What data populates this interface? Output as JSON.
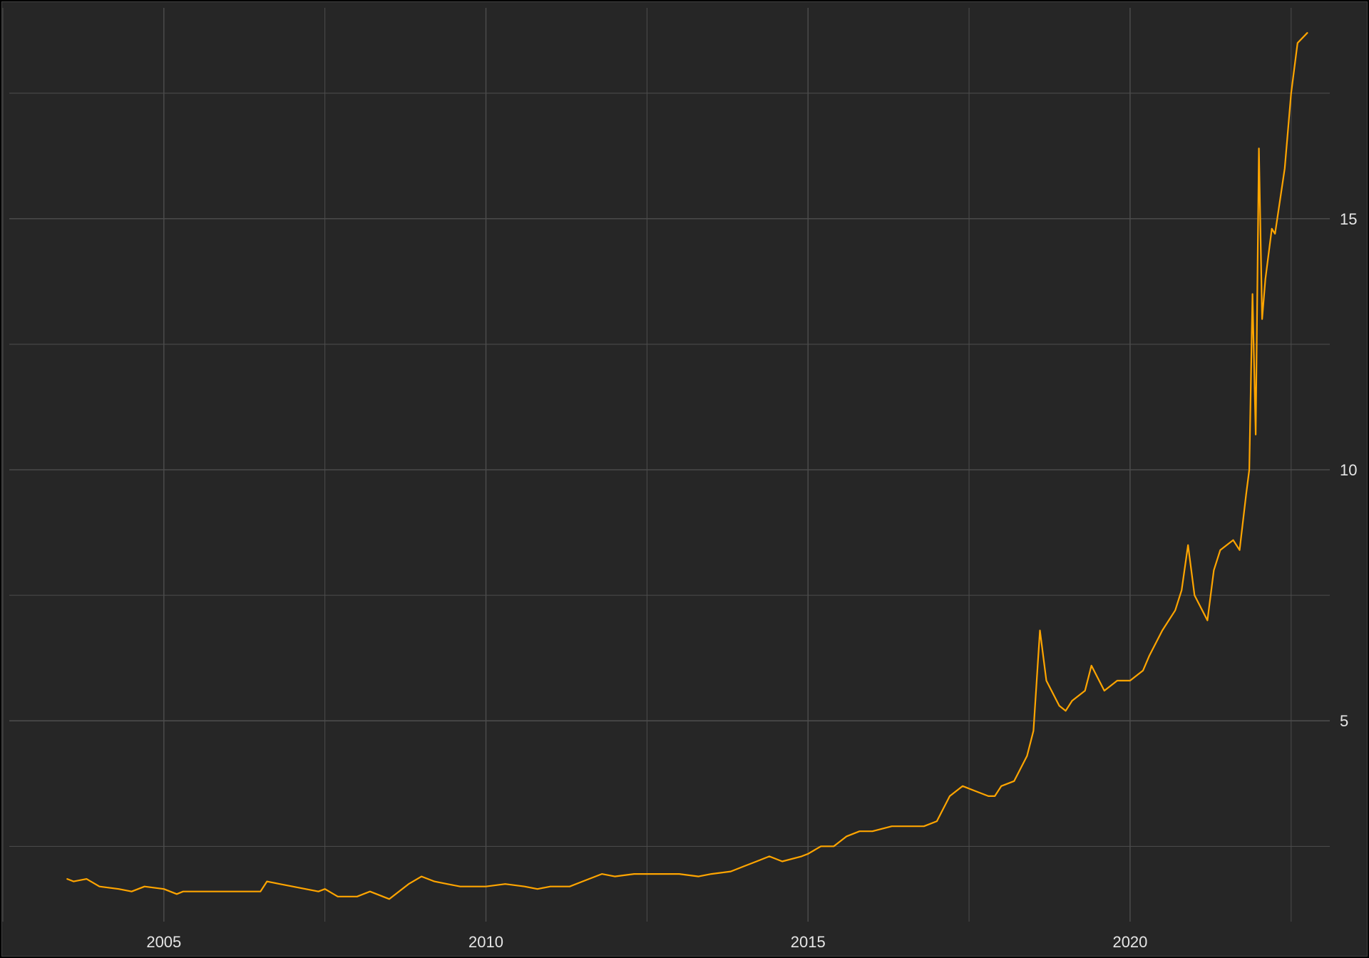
{
  "chart_data": {
    "type": "line",
    "title": "",
    "xlabel": "",
    "ylabel": "",
    "grid": true,
    "legend": "none",
    "xlim": [
      2002.6,
      2023.1
    ],
    "ylim": [
      1,
      19.2
    ],
    "x_ticks": [
      {
        "value": 2005,
        "label": "2005"
      },
      {
        "value": 2010,
        "label": "2010"
      },
      {
        "value": 2015,
        "label": "2015"
      },
      {
        "value": 2020,
        "label": "2020"
      }
    ],
    "x_minor_gridlines": [
      2002.5,
      2007.5,
      2012.5,
      2017.5,
      2022.5
    ],
    "y_ticks": [
      {
        "value": 5,
        "label": "5"
      },
      {
        "value": 10,
        "label": "10"
      },
      {
        "value": 15,
        "label": "15"
      }
    ],
    "y_minor_gridlines": [
      2.5,
      7.5,
      12.5,
      17.5
    ],
    "colors": {
      "background": "#262626",
      "grid": "#4d4d4d",
      "line": "#FFA500",
      "text": "#e6e6e6"
    },
    "series": [
      {
        "x": [
          2003.5,
          2003.6,
          2003.8,
          2004.0,
          2004.3,
          2004.5,
          2004.7,
          2005.0,
          2005.2,
          2005.3,
          2005.6,
          2006.0,
          2006.4,
          2006.5,
          2006.6,
          2006.8,
          2007.0,
          2007.4,
          2007.5,
          2007.7,
          2008.0,
          2008.2,
          2008.5,
          2008.8,
          2009.0,
          2009.2,
          2009.4,
          2009.6,
          2009.8,
          2010.0,
          2010.3,
          2010.6,
          2010.8,
          2011.0,
          2011.3,
          2011.5,
          2011.8,
          2012.0,
          2012.3,
          2012.5,
          2012.8,
          2013.0,
          2013.3,
          2013.5,
          2013.8,
          2014.0,
          2014.2,
          2014.4,
          2014.6,
          2014.9,
          2015.0,
          2015.2,
          2015.4,
          2015.6,
          2015.8,
          2016.0,
          2016.3,
          2016.6,
          2016.8,
          2017.0,
          2017.2,
          2017.4,
          2017.6,
          2017.8,
          2017.9,
          2018.0,
          2018.2,
          2018.4,
          2018.5,
          2018.6,
          2018.7,
          2018.9,
          2019.0,
          2019.1,
          2019.3,
          2019.4,
          2019.6,
          2019.8,
          2020.0,
          2020.2,
          2020.3,
          2020.5,
          2020.7,
          2020.8,
          2020.9,
          2021.0,
          2021.2,
          2021.3,
          2021.4,
          2021.6,
          2021.7,
          2021.8,
          2021.85,
          2021.9,
          2021.95,
          2022.0,
          2022.05,
          2022.1,
          2022.2,
          2022.25,
          2022.4,
          2022.5,
          2022.6,
          2022.75
        ],
        "y": [
          1.85,
          1.8,
          1.85,
          1.7,
          1.65,
          1.6,
          1.7,
          1.65,
          1.55,
          1.6,
          1.6,
          1.6,
          1.6,
          1.6,
          1.8,
          1.75,
          1.7,
          1.6,
          1.65,
          1.5,
          1.5,
          1.6,
          1.45,
          1.75,
          1.9,
          1.8,
          1.75,
          1.7,
          1.7,
          1.7,
          1.75,
          1.7,
          1.65,
          1.7,
          1.7,
          1.8,
          1.95,
          1.9,
          1.95,
          1.95,
          1.95,
          1.95,
          1.9,
          1.95,
          2.0,
          2.1,
          2.2,
          2.3,
          2.2,
          2.3,
          2.35,
          2.5,
          2.5,
          2.7,
          2.8,
          2.8,
          2.9,
          2.9,
          2.9,
          3.0,
          3.5,
          3.7,
          3.6,
          3.5,
          3.5,
          3.7,
          3.8,
          4.3,
          4.8,
          6.8,
          5.8,
          5.3,
          5.2,
          5.4,
          5.6,
          6.1,
          5.6,
          5.8,
          5.8,
          6.0,
          6.3,
          6.8,
          7.2,
          7.6,
          8.5,
          7.5,
          7.0,
          8.0,
          8.4,
          8.6,
          8.4,
          9.5,
          10.0,
          13.5,
          10.7,
          16.4,
          13.0,
          13.8,
          14.8,
          14.7,
          16.0,
          17.5,
          18.5,
          18.7
        ]
      }
    ]
  }
}
